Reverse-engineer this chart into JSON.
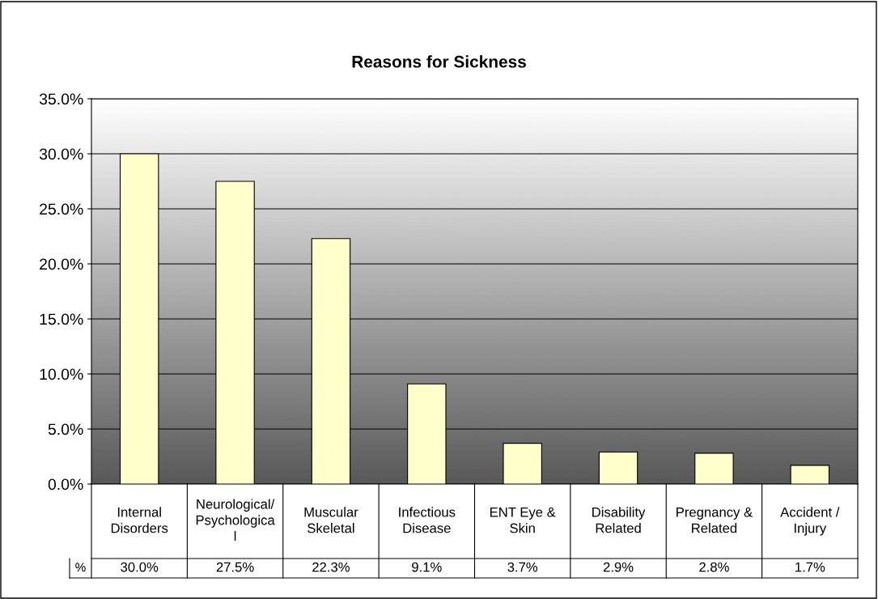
{
  "chart_data": {
    "type": "bar",
    "title": "Reasons for Sickness",
    "categories": [
      "Internal\nDisorders",
      "Neurological/\nPsychologica\nl",
      "Muscular\nSkeletal",
      "Infectious\nDisease",
      "ENT Eye &\nSkin",
      "Disability\nRelated",
      "Pregnancy &\nRelated",
      "Accident /\nInjury"
    ],
    "series": [
      {
        "name": "%",
        "color": "#ffffcc",
        "values": [
          30.0,
          27.5,
          22.3,
          9.1,
          3.7,
          2.9,
          2.8,
          1.7
        ],
        "value_labels": [
          "30.0%",
          "27.5%",
          "22.3%",
          "9.1%",
          "3.7%",
          "2.9%",
          "2.8%",
          "1.7%"
        ]
      }
    ],
    "ylim": [
      0,
      35
    ],
    "yticks": [
      {
        "value": 0,
        "label": "0.0%"
      },
      {
        "value": 5,
        "label": "5.0%"
      },
      {
        "value": 10,
        "label": "10.0%"
      },
      {
        "value": 15,
        "label": "15.0%"
      },
      {
        "value": 20,
        "label": "20.0%"
      },
      {
        "value": 25,
        "label": "25.0%"
      },
      {
        "value": 30,
        "label": "30.0%"
      },
      {
        "value": 35,
        "label": "35.0%"
      }
    ],
    "grid": "y",
    "legend": "bottom left"
  }
}
